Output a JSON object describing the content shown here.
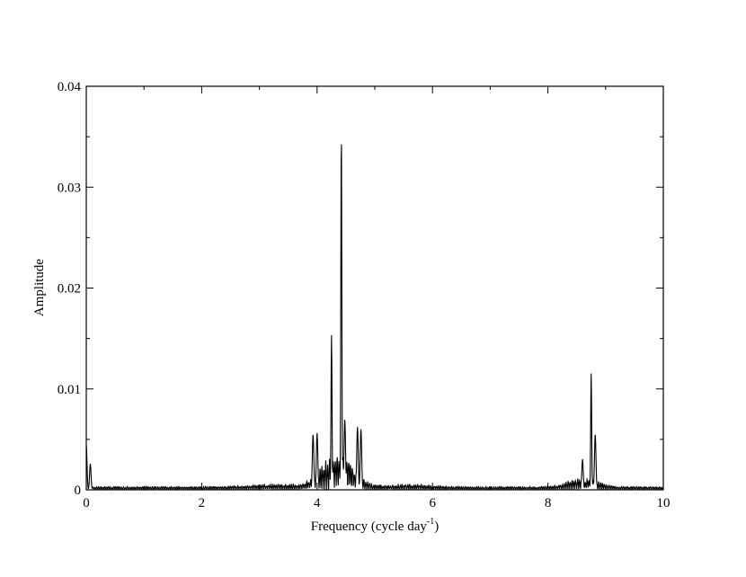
{
  "chart_data": {
    "type": "line",
    "title": "",
    "xlabel_main": "Frequency (cycle day",
    "xlabel_sup": "-1",
    "xlabel_end": ")",
    "ylabel": "Amplitude",
    "xlim": [
      0,
      10
    ],
    "ylim": [
      0,
      0.04
    ],
    "grid": false,
    "legend": "none",
    "line_color": "#000000",
    "xticks": [
      0,
      2,
      4,
      6,
      8,
      10
    ],
    "xtick_labels": [
      "0",
      "2",
      "4",
      "6",
      "8",
      "10"
    ],
    "yticks": [
      0,
      0.01,
      0.02,
      0.03,
      0.04
    ],
    "ytick_labels": [
      "0",
      "0.01",
      "0.02",
      "0.03",
      "0.04"
    ],
    "peaks": [
      {
        "x": 0.0,
        "y": 0.0044
      },
      {
        "x": 0.07,
        "y": 0.0026
      },
      {
        "x": 3.93,
        "y": 0.0055
      },
      {
        "x": 4.0,
        "y": 0.0056
      },
      {
        "x": 4.25,
        "y": 0.0153
      },
      {
        "x": 4.42,
        "y": 0.0354
      },
      {
        "x": 4.48,
        "y": 0.007
      },
      {
        "x": 4.7,
        "y": 0.0062
      },
      {
        "x": 4.76,
        "y": 0.006
      },
      {
        "x": 8.6,
        "y": 0.003
      },
      {
        "x": 8.75,
        "y": 0.0115
      },
      {
        "x": 8.82,
        "y": 0.0055
      }
    ]
  }
}
